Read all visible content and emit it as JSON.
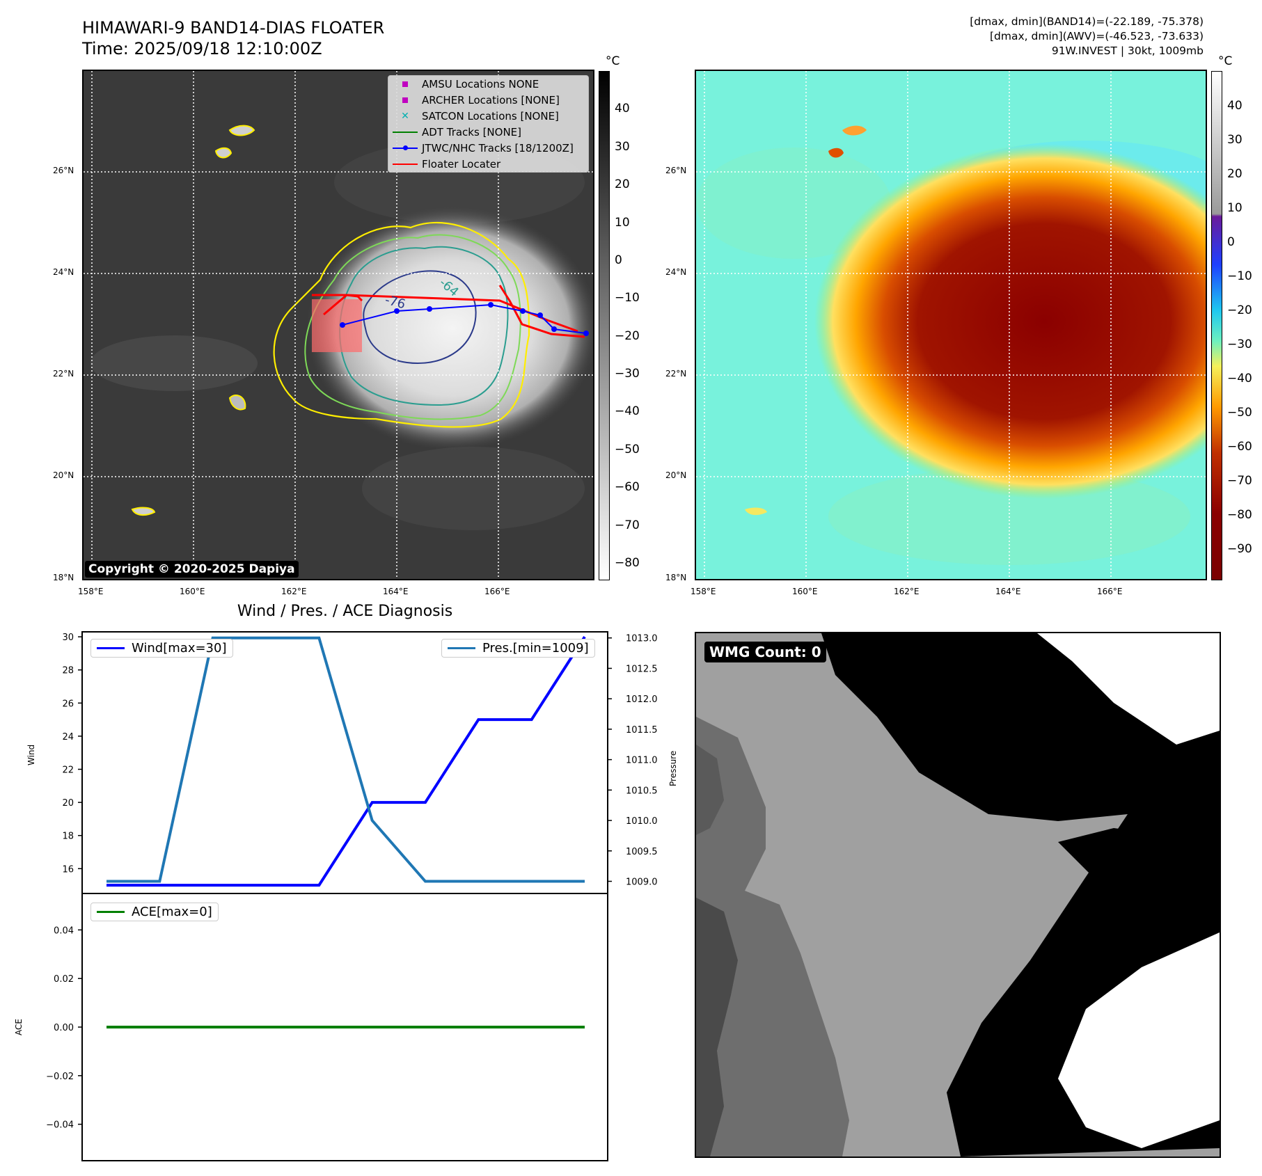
{
  "header": {
    "title_line1": "HIMAWARI-9 BAND14-DIAS FLOATER",
    "title_line2": "Time: 2025/09/18 12:10:00Z",
    "stats_line1": "[dmax, dmin](BAND14)=(-22.189, -75.378)",
    "stats_line2": "[dmax, dmin](AWV)=(-46.523, -73.633)",
    "stats_line3": "91W.INVEST | 30kt, 1009mb"
  },
  "map_left": {
    "lon_ticks": [
      "158°E",
      "160°E",
      "162°E",
      "164°E",
      "166°E"
    ],
    "lat_ticks": [
      "26°N",
      "24°N",
      "22°N",
      "20°N",
      "18°N"
    ],
    "copyright": "Copyright © 2020-2025 Dapiya",
    "contour_labels": [
      "-76",
      "-64"
    ],
    "legend": {
      "amsu": "AMSU Locations NONE",
      "archer": "ARCHER Locations [NONE]",
      "satcon": "SATCON Locations [NONE]",
      "adt": "ADT Tracks [NONE]",
      "jtwc": "JTWC/NHC Tracks [18/1200Z]",
      "floater": "Floater Locater"
    },
    "colorbar": {
      "unit": "°C",
      "ticks": [
        "40",
        "30",
        "20",
        "10",
        "0",
        "−10",
        "−20",
        "−30",
        "−40",
        "−50",
        "−60",
        "−70",
        "−80"
      ]
    }
  },
  "map_right": {
    "lon_ticks": [
      "158°E",
      "160°E",
      "162°E",
      "164°E",
      "166°E"
    ],
    "lat_ticks": [
      "26°N",
      "24°N",
      "22°N",
      "20°N",
      "18°N"
    ],
    "colorbar": {
      "unit": "°C",
      "ticks": [
        "40",
        "30",
        "20",
        "10",
        "0",
        "−10",
        "−20",
        "−30",
        "−40",
        "−50",
        "−60",
        "−70",
        "−80",
        "−90"
      ]
    }
  },
  "chart_data": [
    {
      "type": "line",
      "title": "Wind / Pres. / ACE Diagnosis",
      "ylabel": "Wind",
      "ylabel_right": "Pressure",
      "ylim": [
        14.5,
        30.3
      ],
      "ylim_right": [
        1008.8,
        1013.1
      ],
      "yticks": [
        16,
        18,
        20,
        22,
        24,
        26,
        28,
        30
      ],
      "yticks_right": [
        "1009.0",
        "1009.5",
        "1010.0",
        "1010.5",
        "1011.0",
        "1011.5",
        "1012.0",
        "1012.5",
        "1013.0"
      ],
      "x": [
        0,
        1,
        2,
        3,
        4,
        5,
        6,
        7,
        8,
        9
      ],
      "series": [
        {
          "name": "Wind[max=30]",
          "axis": "left",
          "color": "#0000ff",
          "values": [
            15,
            15,
            15,
            15,
            15,
            20,
            20,
            25,
            25,
            30
          ]
        },
        {
          "name": "Pres.[min=1009]",
          "axis": "right",
          "color": "#1f77b4",
          "values": [
            1009,
            1009,
            1013,
            1013,
            1013,
            1010,
            1009,
            1009,
            1009,
            1009
          ]
        }
      ]
    },
    {
      "type": "line",
      "ylabel": "ACE",
      "ylim": [
        -0.055,
        0.055
      ],
      "yticks": [
        "0.04",
        "0.02",
        "0.00",
        "−0.02",
        "−0.04"
      ],
      "x": [
        0,
        1,
        2,
        3,
        4,
        5,
        6,
        7,
        8,
        9
      ],
      "series": [
        {
          "name": "ACE[max=0]",
          "color": "#008000",
          "values": [
            0,
            0,
            0,
            0,
            0,
            0,
            0,
            0,
            0,
            0
          ]
        }
      ]
    }
  ],
  "wmg": {
    "label": "WMG Count: 0"
  },
  "colors": {
    "wind": "#0000ff",
    "pressure": "#1f77b4",
    "ace": "#008000",
    "track": "#0000ff",
    "floater": "#ff0000"
  }
}
